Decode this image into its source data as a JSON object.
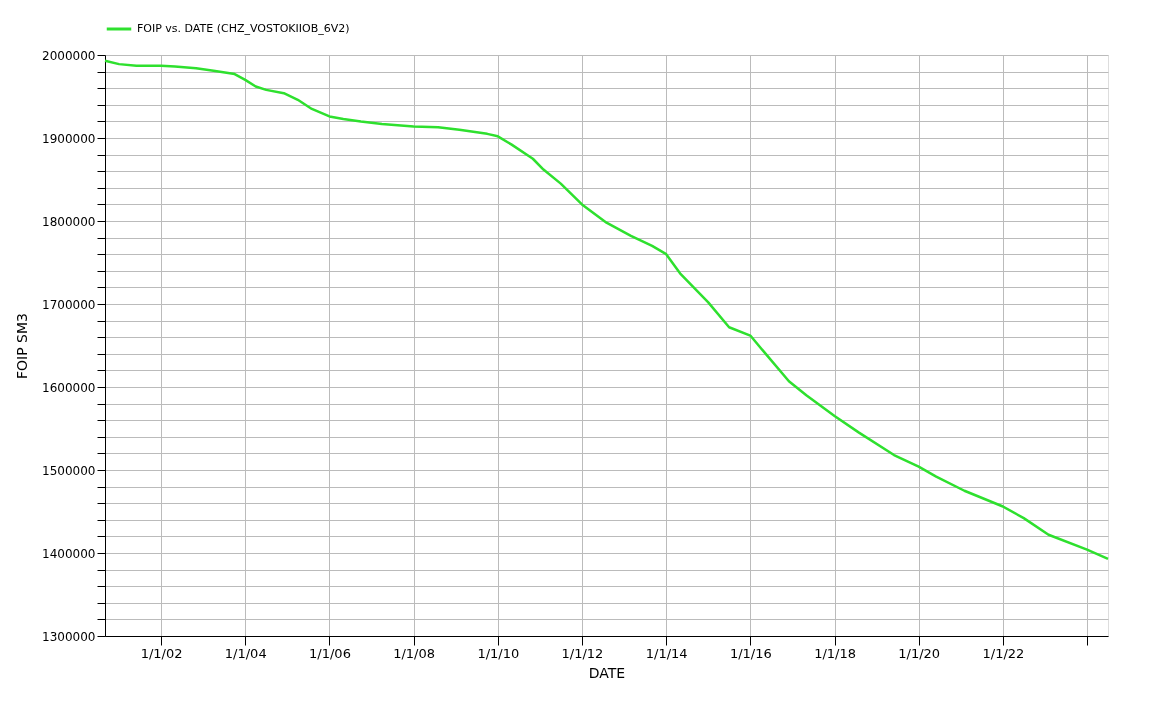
{
  "chart_data": {
    "type": "line",
    "xlabel": "DATE",
    "ylabel": "FOIP   SM3",
    "x": [
      "2000-09",
      "2001-01",
      "2001-06",
      "2002-01",
      "2002-05",
      "2002-11",
      "2003-04",
      "2003-10",
      "2004-01",
      "2004-04",
      "2004-07",
      "2004-12",
      "2005-04",
      "2005-08",
      "2006-01",
      "2006-05",
      "2006-10",
      "2007-04",
      "2008-01",
      "2008-08",
      "2009-02",
      "2009-10",
      "2010-01",
      "2010-05",
      "2010-11",
      "2011-02",
      "2011-07",
      "2012-01",
      "2012-08",
      "2013-03",
      "2013-09",
      "2014-01",
      "2014-05",
      "2015-01",
      "2015-07",
      "2016-01",
      "2016-05",
      "2016-12",
      "2017-05",
      "2018-01",
      "2018-08",
      "2019-06",
      "2020-01",
      "2020-06",
      "2021-02",
      "2022-01",
      "2022-07",
      "2023-02",
      "2024-01",
      "2024-07"
    ],
    "series": [
      {
        "name": "FOIP  vs.  DATE (CHZ_VOSTOKIIOB_6V2)",
        "color": "#2ee02e",
        "values": [
          1993000,
          1989000,
          1987000,
          1987000,
          1986000,
          1984000,
          1981000,
          1977000,
          1970000,
          1962000,
          1958000,
          1954000,
          1946000,
          1935000,
          1926000,
          1923000,
          1920000,
          1917000,
          1914000,
          1913000,
          1910000,
          1905000,
          1902000,
          1892000,
          1875000,
          1862000,
          1845000,
          1820000,
          1798000,
          1782000,
          1770000,
          1760000,
          1737000,
          1702000,
          1672000,
          1662000,
          1642000,
          1607000,
          1590000,
          1565000,
          1545000,
          1518000,
          1504000,
          1492000,
          1475000,
          1456000,
          1442000,
          1422000,
          1404000,
          1393000
        ]
      }
    ],
    "xlim": [
      "2000-09",
      "2024-07"
    ],
    "xticks": [
      {
        "value": "2002-01-01",
        "label": "1/1/02"
      },
      {
        "value": "2004-01-01",
        "label": "1/1/04"
      },
      {
        "value": "2006-01-01",
        "label": "1/1/06"
      },
      {
        "value": "2008-01-01",
        "label": "1/1/08"
      },
      {
        "value": "2010-01-01",
        "label": "1/1/10"
      },
      {
        "value": "2012-01-01",
        "label": "1/1/12"
      },
      {
        "value": "2014-01-01",
        "label": "1/1/14"
      },
      {
        "value": "2016-01-01",
        "label": "1/1/16"
      },
      {
        "value": "2018-01-01",
        "label": "1/1/18"
      },
      {
        "value": "2020-01-01",
        "label": "1/1/20"
      },
      {
        "value": "2022-01-01",
        "label": "1/1/22"
      },
      {
        "value": "2024-01-01",
        "label": null
      }
    ],
    "ylim": [
      1300000,
      2000000
    ],
    "yticks": [
      1300000,
      {
        "value": 1320000,
        "label": null
      },
      {
        "value": 1340000,
        "label": null
      },
      {
        "value": 1360000,
        "label": null
      },
      {
        "value": 1380000,
        "label": null
      },
      1400000,
      {
        "value": 1420000,
        "label": null
      },
      {
        "value": 1440000,
        "label": null
      },
      {
        "value": 1460000,
        "label": null
      },
      {
        "value": 1480000,
        "label": null
      },
      1500000,
      {
        "value": 1520000,
        "label": null
      },
      {
        "value": 1540000,
        "label": null
      },
      {
        "value": 1560000,
        "label": null
      },
      {
        "value": 1580000,
        "label": null
      },
      1600000,
      {
        "value": 1620000,
        "label": null
      },
      {
        "value": 1640000,
        "label": null
      },
      {
        "value": 1660000,
        "label": null
      },
      {
        "value": 1680000,
        "label": null
      },
      1700000,
      {
        "value": 1720000,
        "label": null
      },
      {
        "value": 1740000,
        "label": null
      },
      {
        "value": 1760000,
        "label": null
      },
      {
        "value": 1780000,
        "label": null
      },
      1800000,
      {
        "value": 1820000,
        "label": null
      },
      {
        "value": 1840000,
        "label": null
      },
      {
        "value": 1860000,
        "label": null
      },
      {
        "value": 1880000,
        "label": null
      },
      1900000,
      {
        "value": 1920000,
        "label": null
      },
      {
        "value": 1940000,
        "label": null
      },
      {
        "value": 1960000,
        "label": null
      },
      {
        "value": 1980000,
        "label": null
      },
      2000000
    ],
    "grid": true,
    "legend": "top left",
    "marker": "none",
    "line_style": "solid"
  }
}
